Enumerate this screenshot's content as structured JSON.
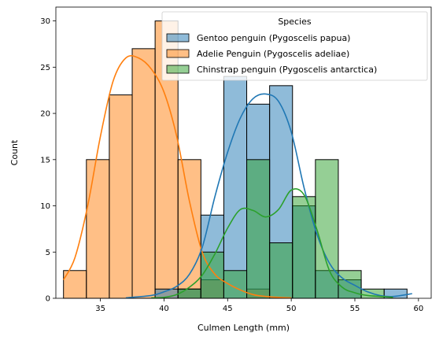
{
  "chart_data": {
    "type": "bar",
    "subtype": "overlaid histogram with KDE",
    "xlabel": "Culmen Length (mm)",
    "ylabel": "Count",
    "xlim": [
      31.5,
      61
    ],
    "ylim": [
      0,
      31.5
    ],
    "xticks": [
      35,
      40,
      45,
      50,
      55,
      60
    ],
    "yticks": [
      0,
      5,
      10,
      15,
      20,
      25,
      30
    ],
    "bin_edges": [
      32.1,
      33.9,
      35.7,
      37.5,
      39.3,
      41.1,
      42.9,
      44.7,
      46.5,
      48.3,
      50.1,
      51.9,
      53.7,
      55.5,
      57.3,
      59.1
    ],
    "legend": {
      "title": "Species",
      "placement": "upper right"
    },
    "series": [
      {
        "name": "Adelie Penguin (Pygoscelis adeliae)",
        "color": "#ff7f0e",
        "bin_start": 32.1,
        "bin_width": 1.8,
        "counts": [
          3,
          15,
          22,
          27,
          30,
          15,
          2,
          0,
          1
        ],
        "kde": [
          [
            32.1,
            2.0
          ],
          [
            33.0,
            4.4
          ],
          [
            34.0,
            10.0
          ],
          [
            35.0,
            17.5
          ],
          [
            36.0,
            23.5
          ],
          [
            37.0,
            26.0
          ],
          [
            38.0,
            26.0
          ],
          [
            39.0,
            24.8
          ],
          [
            40.0,
            22.3
          ],
          [
            41.0,
            17.5
          ],
          [
            42.0,
            10.5
          ],
          [
            43.0,
            5.0
          ],
          [
            44.0,
            2.6
          ],
          [
            45.0,
            1.6
          ],
          [
            46.0,
            0.9
          ],
          [
            47.0,
            0.4
          ],
          [
            48.0,
            0.2
          ],
          [
            49.0,
            0.1
          ],
          [
            50.0,
            0.05
          ]
        ]
      },
      {
        "name": "Gentoo penguin (Pygoscelis papua)",
        "color": "#1f77b4",
        "bin_start": 39.3,
        "bin_width": 1.8,
        "counts": [
          1,
          1,
          9,
          24,
          21,
          23,
          10,
          3,
          2,
          0,
          1
        ],
        "kde": [
          [
            37.0,
            0.05
          ],
          [
            39.0,
            0.3
          ],
          [
            40.0,
            0.7
          ],
          [
            41.0,
            1.3
          ],
          [
            42.0,
            2.6
          ],
          [
            43.0,
            5.5
          ],
          [
            44.0,
            11.0
          ],
          [
            45.0,
            15.8
          ],
          [
            46.0,
            19.5
          ],
          [
            47.0,
            21.6
          ],
          [
            48.0,
            22.1
          ],
          [
            49.0,
            21.3
          ],
          [
            50.0,
            18.0
          ],
          [
            51.0,
            12.0
          ],
          [
            52.0,
            7.0
          ],
          [
            53.0,
            3.8
          ],
          [
            54.0,
            2.2
          ],
          [
            55.0,
            1.4
          ],
          [
            56.0,
            0.7
          ],
          [
            57.0,
            0.3
          ],
          [
            58.0,
            0.2
          ],
          [
            59.5,
            0.5
          ]
        ]
      },
      {
        "name": "Chinstrap penguin (Pygoscelis antarctica)",
        "color": "#2ca02c",
        "bin_start": 41.1,
        "bin_width": 1.8,
        "counts": [
          1,
          5,
          3,
          15,
          6,
          11,
          15,
          3,
          1
        ],
        "kde": [
          [
            39.0,
            0.05
          ],
          [
            40.0,
            0.1
          ],
          [
            41.0,
            0.4
          ],
          [
            42.0,
            1.2
          ],
          [
            43.0,
            2.5
          ],
          [
            44.0,
            4.8
          ],
          [
            45.0,
            7.6
          ],
          [
            46.0,
            9.6
          ],
          [
            47.0,
            9.5
          ],
          [
            48.0,
            8.8
          ],
          [
            49.0,
            9.6
          ],
          [
            50.0,
            11.7
          ],
          [
            51.0,
            11.2
          ],
          [
            52.0,
            7.5
          ],
          [
            53.0,
            3.0
          ],
          [
            54.0,
            1.2
          ],
          [
            55.0,
            0.6
          ],
          [
            56.0,
            0.3
          ],
          [
            57.0,
            0.2
          ],
          [
            58.0,
            0.1
          ]
        ]
      }
    ]
  }
}
